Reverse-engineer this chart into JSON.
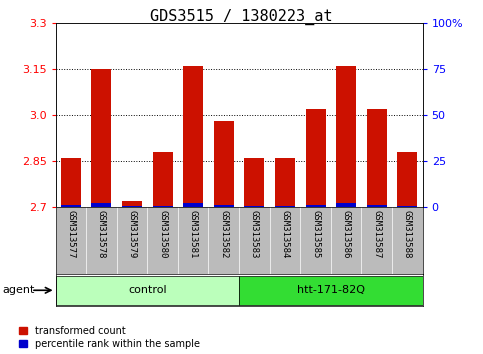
{
  "title": "GDS3515 / 1380223_at",
  "samples": [
    "GSM313577",
    "GSM313578",
    "GSM313579",
    "GSM313580",
    "GSM313581",
    "GSM313582",
    "GSM313583",
    "GSM313584",
    "GSM313585",
    "GSM313586",
    "GSM313587",
    "GSM313588"
  ],
  "red_values": [
    2.86,
    3.15,
    2.72,
    2.88,
    3.16,
    2.98,
    2.86,
    2.86,
    3.02,
    3.16,
    3.02,
    2.88
  ],
  "blue_values": [
    2.706,
    2.713,
    2.703,
    2.705,
    2.713,
    2.706,
    2.704,
    2.705,
    2.706,
    2.713,
    2.706,
    2.705
  ],
  "ymin": 2.7,
  "ymax": 3.3,
  "yticks_left": [
    2.7,
    2.85,
    3.0,
    3.15,
    3.3
  ],
  "yticks_right": [
    0,
    25,
    50,
    75,
    100
  ],
  "bar_width": 0.65,
  "red_color": "#cc1100",
  "blue_color": "#0000cc",
  "grid_color": "#000000",
  "plot_bg": "#ffffff",
  "tick_label_area_bg": "#bbbbbb",
  "group_labels": [
    "control",
    "htt-171-82Q"
  ],
  "group_ranges": [
    [
      0,
      5
    ],
    [
      6,
      11
    ]
  ],
  "group_color_light": "#bbffbb",
  "group_color_dark": "#33dd33",
  "agent_label": "agent",
  "legend_items": [
    "transformed count",
    "percentile rank within the sample"
  ],
  "legend_colors": [
    "#cc1100",
    "#0000cc"
  ],
  "title_fontsize": 11,
  "tick_fontsize": 8,
  "label_fontsize": 8,
  "sample_fontsize": 6.5
}
